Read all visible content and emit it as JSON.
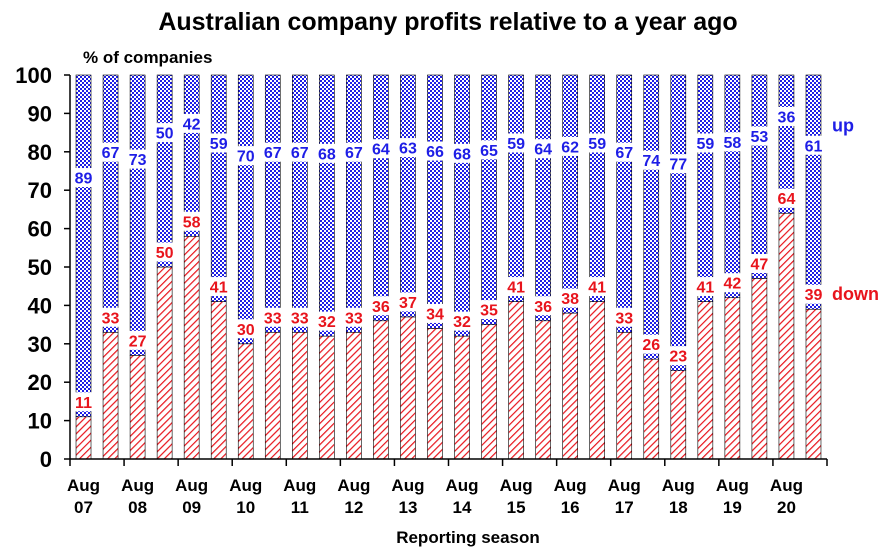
{
  "chart_data": {
    "type": "bar",
    "stacked": true,
    "title": "Australian company profits relative to a year ago",
    "ylabel": "% of companies",
    "xlabel": "Reporting season",
    "ylim": [
      0,
      100
    ],
    "yticks": [
      "0",
      "10",
      "20",
      "30",
      "40",
      "50",
      "60",
      "70",
      "80",
      "90",
      "100"
    ],
    "x_ticks": [
      {
        "line1": "Aug",
        "line2": "07"
      },
      {
        "line1": "Aug",
        "line2": "08"
      },
      {
        "line1": "Aug",
        "line2": "09"
      },
      {
        "line1": "Aug",
        "line2": "10"
      },
      {
        "line1": "Aug",
        "line2": "11"
      },
      {
        "line1": "Aug",
        "line2": "12"
      },
      {
        "line1": "Aug",
        "line2": "13"
      },
      {
        "line1": "Aug",
        "line2": "14"
      },
      {
        "line1": "Aug",
        "line2": "15"
      },
      {
        "line1": "Aug",
        "line2": "16"
      },
      {
        "line1": "Aug",
        "line2": "17"
      },
      {
        "line1": "Aug",
        "line2": "18"
      },
      {
        "line1": "Aug",
        "line2": "19"
      },
      {
        "line1": "Aug",
        "line2": "20"
      }
    ],
    "series": [
      {
        "name": "down",
        "color": "#e8141c",
        "pattern": "diagonal-hatch",
        "values": [
          11,
          33,
          27,
          50,
          58,
          41,
          30,
          33,
          33,
          32,
          33,
          36,
          37,
          34,
          32,
          35,
          41,
          36,
          38,
          41,
          33,
          26,
          23,
          41,
          42,
          47,
          64,
          39
        ]
      },
      {
        "name": "up",
        "color": "#1e1ee6",
        "pattern": "checkerboard",
        "values": [
          89,
          67,
          73,
          50,
          42,
          59,
          70,
          67,
          67,
          68,
          67,
          64,
          63,
          66,
          68,
          65,
          59,
          64,
          62,
          59,
          67,
          74,
          77,
          59,
          58,
          53,
          36,
          61
        ]
      }
    ],
    "grid": false,
    "legend": "series names labelled at right end of bars"
  }
}
